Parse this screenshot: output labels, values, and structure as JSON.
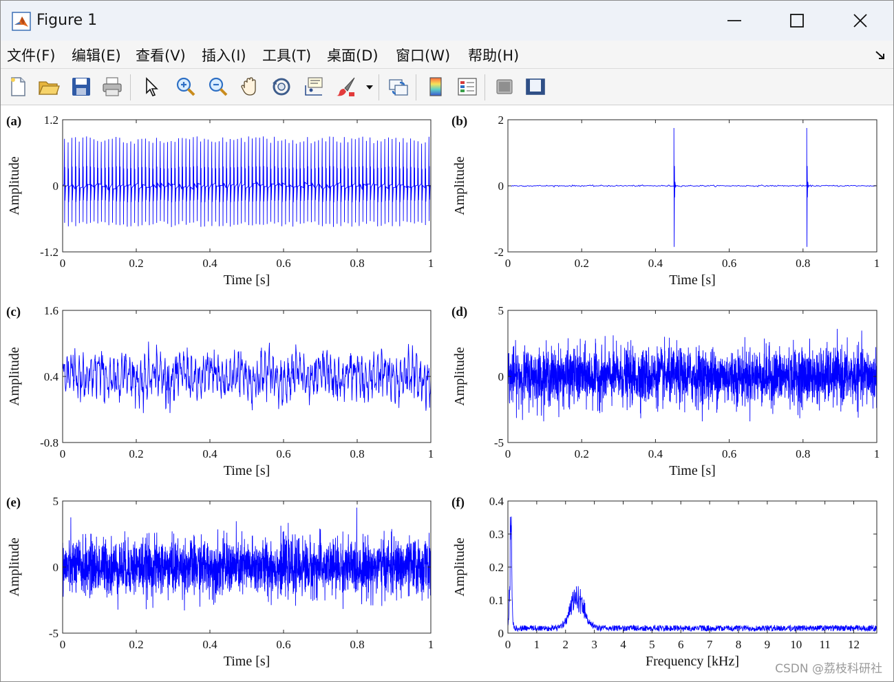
{
  "window": {
    "title": "Figure 1",
    "minimize_label": "—",
    "maximize_label": "☐",
    "close_label": "✕"
  },
  "menu": [
    {
      "label": "文件(F)"
    },
    {
      "label": "编辑(E)"
    },
    {
      "label": "查看(V)"
    },
    {
      "label": "插入(I)"
    },
    {
      "label": "工具(T)"
    },
    {
      "label": "桌面(D)"
    },
    {
      "label": "窗口(W)"
    },
    {
      "label": "帮助(H)"
    }
  ],
  "menu_overflow_icon": "dock-arrow-icon",
  "toolbar": [
    {
      "icon": "new-figure-icon"
    },
    {
      "icon": "open-file-icon"
    },
    {
      "icon": "save-icon"
    },
    {
      "icon": "print-icon"
    },
    {
      "icon": "pointer-icon"
    },
    {
      "icon": "zoom-in-icon"
    },
    {
      "icon": "zoom-out-icon"
    },
    {
      "icon": "pan-icon"
    },
    {
      "icon": "rotate-3d-icon"
    },
    {
      "icon": "data-cursor-icon"
    },
    {
      "icon": "brush-icon"
    },
    {
      "icon": "link-plot-icon"
    },
    {
      "icon": "colorbar-icon"
    },
    {
      "icon": "legend-icon"
    },
    {
      "icon": "hide-plot-tools-icon"
    },
    {
      "icon": "show-plot-tools-icon"
    }
  ],
  "watermark": "CSDN @荔枝科研社",
  "colors": {
    "line": "#0000ff",
    "axes": "#262626"
  },
  "chart_data": [
    {
      "id": "a",
      "panel_label": "(a)",
      "type": "line",
      "signal": "periodic-impulses",
      "xlabel": "Time [s]",
      "ylabel": "Amplitude",
      "xlim": [
        0,
        1
      ],
      "ylim": [
        -1.2,
        1.2
      ],
      "xticks": [
        0,
        0.2,
        0.4,
        0.6,
        0.8,
        1
      ],
      "xtick_labels": [
        "0",
        "0.2",
        "0.4",
        "0.6",
        "0.8",
        "1"
      ],
      "yticks": [
        -1.2,
        0,
        1.2
      ],
      "ytick_labels": [
        "-1.2",
        "0",
        "1.2"
      ],
      "impulse_count": 100,
      "peak_amplitude": 0.9,
      "min_amplitude": -0.75
    },
    {
      "id": "b",
      "panel_label": "(b)",
      "type": "line",
      "signal": "sparse-impulses",
      "xlabel": "Time [s]",
      "ylabel": "Amplitude",
      "xlim": [
        0,
        1
      ],
      "ylim": [
        -2,
        2
      ],
      "xticks": [
        0,
        0.2,
        0.4,
        0.6,
        0.8,
        1
      ],
      "xtick_labels": [
        "0",
        "0.2",
        "0.4",
        "0.6",
        "0.8",
        "1"
      ],
      "yticks": [
        -2,
        0,
        2
      ],
      "ytick_labels": [
        "-2",
        "0",
        "2"
      ],
      "impulse_times": [
        0.45,
        0.81
      ],
      "peak_amplitude": 1.75,
      "min_amplitude": -1.85
    },
    {
      "id": "c",
      "panel_label": "(c)",
      "type": "line",
      "signal": "harmonic-interference",
      "xlabel": "Time [s]",
      "ylabel": "Amplitude",
      "xlim": [
        0,
        1
      ],
      "ylim": [
        -0.8,
        1.6
      ],
      "xticks": [
        0,
        0.2,
        0.4,
        0.6,
        0.8,
        1
      ],
      "xtick_labels": [
        "0",
        "0.2",
        "0.4",
        "0.6",
        "0.8",
        "1"
      ],
      "yticks": [
        -0.8,
        0.4,
        1.6
      ],
      "ytick_labels": [
        "-0.8",
        "0.4",
        "1.6"
      ],
      "center": 0.4,
      "max": 1.05,
      "min": -0.3
    },
    {
      "id": "d",
      "panel_label": "(d)",
      "type": "line",
      "signal": "gaussian-noise",
      "xlabel": "Time [s]",
      "ylabel": "Amplitude",
      "xlim": [
        0,
        1
      ],
      "ylim": [
        -5,
        5
      ],
      "xticks": [
        0,
        0.2,
        0.4,
        0.6,
        0.8,
        1
      ],
      "xtick_labels": [
        "0",
        "0.2",
        "0.4",
        "0.6",
        "0.8",
        "1"
      ],
      "yticks": [
        -5,
        0,
        5
      ],
      "ytick_labels": [
        "-5",
        "0",
        "5"
      ],
      "max": 3.6,
      "min": -3.4
    },
    {
      "id": "e",
      "panel_label": "(e)",
      "type": "line",
      "signal": "mixed-signal",
      "xlabel": "Time [s]",
      "ylabel": "Amplitude",
      "xlim": [
        0,
        1
      ],
      "ylim": [
        -5,
        5
      ],
      "xticks": [
        0,
        0.2,
        0.4,
        0.6,
        0.8,
        1
      ],
      "xtick_labels": [
        "0",
        "0.2",
        "0.4",
        "0.6",
        "0.8",
        "1"
      ],
      "yticks": [
        -5,
        0,
        5
      ],
      "ytick_labels": [
        "-5",
        "0",
        "5"
      ],
      "max": 4.5,
      "min": -3.8
    },
    {
      "id": "f",
      "panel_label": "(f)",
      "type": "line",
      "signal": "spectrum",
      "xlabel": "Frequency [kHz]",
      "ylabel": "Amplitude",
      "xlim": [
        0,
        12.8
      ],
      "ylim": [
        0,
        0.4
      ],
      "xticks": [
        0,
        1,
        2,
        3,
        4,
        5,
        6,
        7,
        8,
        9,
        10,
        11,
        12
      ],
      "xtick_labels": [
        "0",
        "1",
        "2",
        "3",
        "4",
        "5",
        "6",
        "7",
        "8",
        "9",
        "10",
        "11",
        "12"
      ],
      "yticks": [
        0,
        0.1,
        0.2,
        0.3,
        0.4
      ],
      "ytick_labels": [
        "0",
        "0.1",
        "0.2",
        "0.3",
        "0.4"
      ],
      "noise_floor": 0.02,
      "peaks": [
        {
          "x": 0.1,
          "y": 0.4
        },
        {
          "x": 2.4,
          "y": 0.13
        }
      ]
    }
  ]
}
